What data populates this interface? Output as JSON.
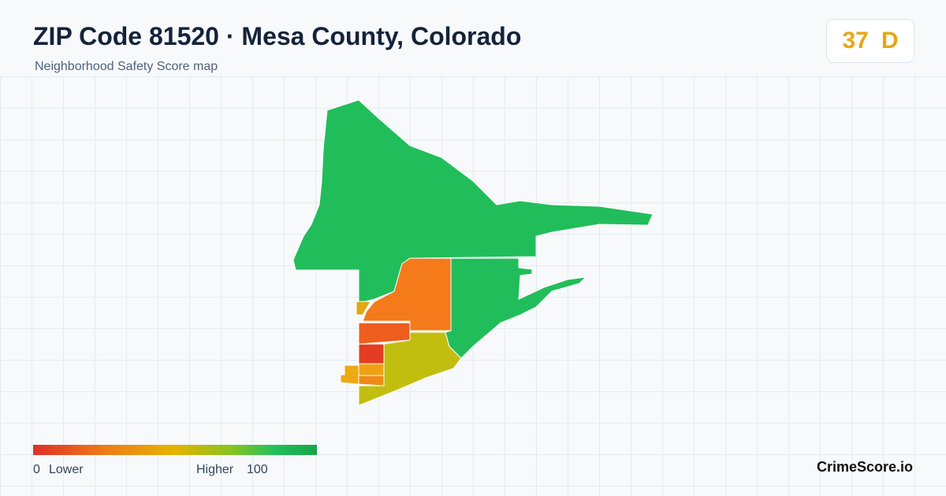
{
  "header": {
    "title": "ZIP Code 81520 · Mesa County, Colorado",
    "subtitle": "Neighborhood Safety Score map"
  },
  "score": {
    "value": 37,
    "grade": "D"
  },
  "legend": {
    "min": 0,
    "min_label": "Lower",
    "max_label": "Higher",
    "max": 100
  },
  "brand": "CrimeScore.io"
}
